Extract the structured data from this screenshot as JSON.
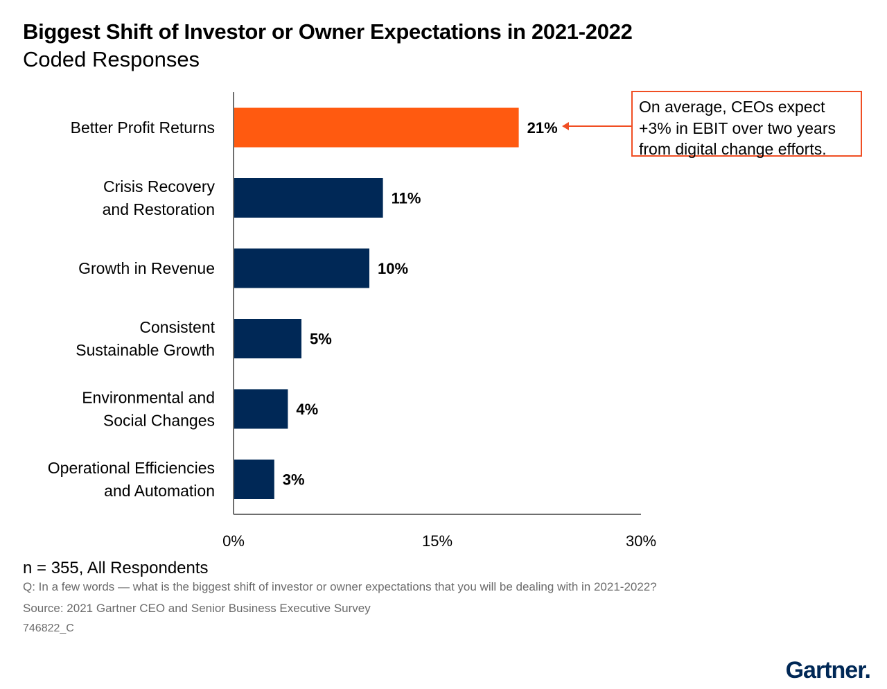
{
  "chart_data": {
    "type": "bar",
    "orientation": "horizontal",
    "title": "Biggest Shift of Investor or Owner Expectations in 2021-2022",
    "subtitle": "Coded Responses",
    "categories": [
      [
        "Better Profit Returns"
      ],
      [
        "Crisis Recovery",
        "and Restoration"
      ],
      [
        "Growth in Revenue"
      ],
      [
        "Consistent",
        "Sustainable Growth"
      ],
      [
        "Environmental and",
        "Social Changes"
      ],
      [
        "Operational Efficiencies",
        "and Automation"
      ]
    ],
    "values": [
      21,
      11,
      10,
      5,
      4,
      3
    ],
    "value_labels": [
      "21%",
      "11%",
      "10%",
      "5%",
      "4%",
      "3%"
    ],
    "xlim": [
      0,
      30
    ],
    "xticks": [
      0,
      15,
      30
    ],
    "xtick_labels": [
      "0%",
      "15%",
      "30%"
    ],
    "grid": false,
    "colors": {
      "highlight": "#ff5a10",
      "default": "#002856",
      "callout_border": "#f04e23"
    },
    "highlight_index": 0,
    "annotation": {
      "target_index": 0,
      "lines": [
        "On average, CEOs expect",
        "+3% in EBIT over two years",
        "from digital change efforts."
      ]
    }
  },
  "footer": {
    "sample": "n = 355, All Respondents",
    "question": "Q: In a few words — what is the biggest shift of investor or owner expectations that you will be dealing with in 2021-2022?",
    "source": "Source: 2021 Gartner CEO and Senior Business Executive Survey",
    "code": "746822_C"
  },
  "brand": {
    "logo_text": "Gartner."
  }
}
